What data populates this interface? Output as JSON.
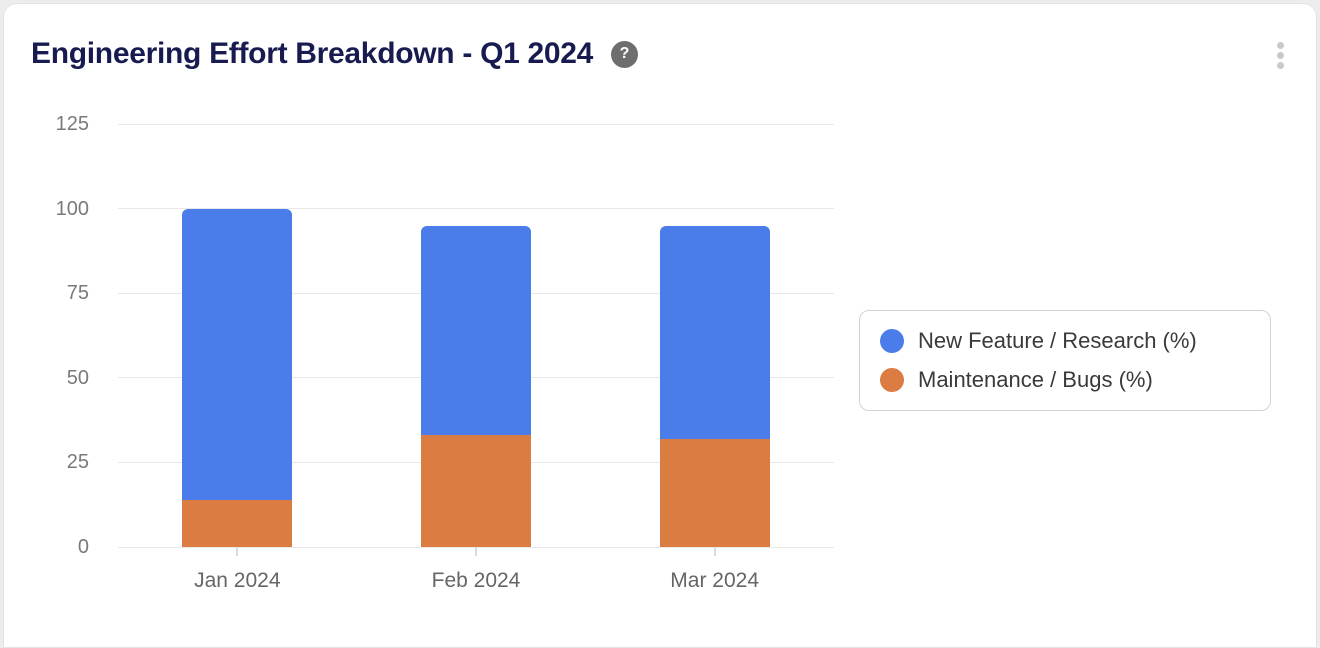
{
  "card": {
    "title": "Engineering Effort Breakdown - Q1 2024",
    "help_label": "?",
    "menu_icon": "kebab-vertical-icon"
  },
  "chart_data": {
    "type": "bar",
    "stacked": true,
    "title": "Engineering Effort Breakdown - Q1 2024",
    "categories": [
      "Jan 2024",
      "Feb 2024",
      "Mar 2024"
    ],
    "series": [
      {
        "name": "New Feature / Research (%)",
        "color": "#4A7DE9",
        "values": [
          86,
          62,
          63
        ]
      },
      {
        "name": "Maintenance / Bugs (%)",
        "color": "#DB7C42",
        "values": [
          14,
          33,
          32
        ]
      }
    ],
    "totals": [
      100,
      95,
      95
    ],
    "xlabel": "",
    "ylabel": "",
    "ylim": [
      0,
      125
    ],
    "yticks": [
      0,
      25,
      50,
      75,
      100,
      125
    ],
    "grid": true,
    "legend_position": "right"
  },
  "colors": {
    "title": "#181B4F",
    "series_blue": "#4A7DE9",
    "series_orange": "#DB7C42",
    "page_background": "#EDEDED"
  }
}
